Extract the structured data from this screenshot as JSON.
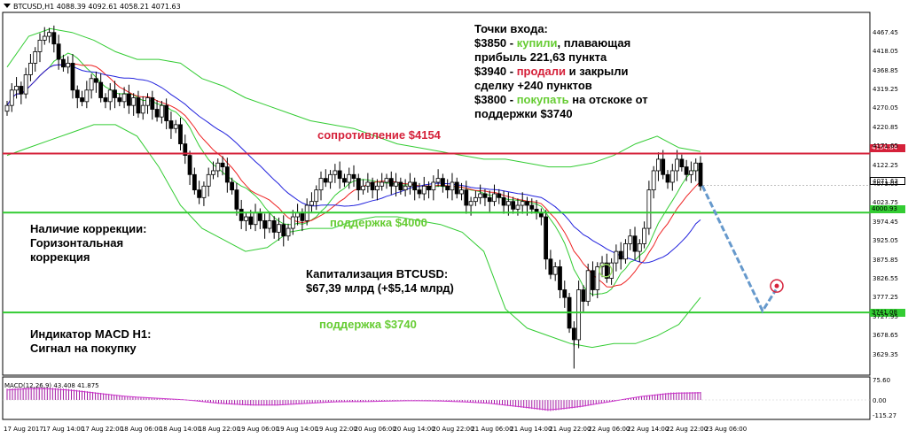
{
  "header": {
    "symbol_info": "BTCUSD,H1  4088.39 4092.61 4058.21 4071.63"
  },
  "annotations": {
    "entry_title": "Точки входа:",
    "entry1_price": "$3850 - ",
    "entry1_action": "купили",
    "entry1_rest": ", плавающая",
    "entry1_line2": "прибыль 221,63 пункта",
    "entry2_price": "$3940 - ",
    "entry2_action": "продали",
    "entry2_rest": " и закрыли",
    "entry2_line2": "сделку +240 пунктов",
    "entry3_price": "$3800 - ",
    "entry3_action": "покупать",
    "entry3_rest": " на отскоке от",
    "entry3_line2": "поддержки $3740",
    "correction_1": "Наличие коррекции:",
    "correction_2": "Горизонтальная",
    "correction_3": "коррекция",
    "cap_1": "Капитализация BTCUSD:",
    "cap_2": "$67,39 млрд (+$5,14 млрд)",
    "macd_1": "Индикатор MACD H1:",
    "macd_2": "Сигнал на покупку"
  },
  "levels": {
    "resistance_label": "сопротивление $4154",
    "support1_label": "поддержка $4000",
    "support2_label": "поддержка $3740",
    "resistance_tag": "4154.84",
    "current_tag": "4071.63",
    "support1_tag": "4000.93",
    "support2_tag": "3741.08"
  },
  "macd": {
    "title": "MACD(12,26,9) 43.408 41.875"
  },
  "colors": {
    "resistance": "#d5213a",
    "support": "#33cc33",
    "sell": "#d5213a",
    "buy": "#66cc33",
    "bb": "#33cc33",
    "ma_red": "#ee2222",
    "ma_blue": "#2222dd",
    "macd": "#990099",
    "forecast": "#6699cc"
  },
  "chart_data": {
    "type": "candlestick",
    "symbol": "BTCUSD",
    "timeframe": "H1",
    "ylim": [
      3580,
      4520
    ],
    "y_ticks": [
      4467.45,
      4418.05,
      4368.85,
      4319.25,
      4270.05,
      4220.85,
      4171.65,
      4122.25,
      4073.05,
      4023.75,
      3974.45,
      3925.05,
      3875.85,
      3826.55,
      3777.25,
      3727.95,
      3678.65,
      3629.35
    ],
    "x_ticks": [
      "17 Aug 2017",
      "17 Aug 14:00",
      "17 Aug 22:00",
      "18 Aug 06:00",
      "18 Aug 14:00",
      "18 Aug 22:00",
      "19 Aug 06:00",
      "19 Aug 14:00",
      "19 Aug 22:00",
      "20 Aug 06:00",
      "20 Aug 14:00",
      "20 Aug 22:00",
      "21 Aug 06:00",
      "21 Aug 14:00",
      "21 Aug 22:00",
      "22 Aug 06:00",
      "22 Aug 14:00",
      "22 Aug 22:00",
      "23 Aug 06:00"
    ],
    "close": [
      4280,
      4320,
      4330,
      4310,
      4360,
      4390,
      4420,
      4450,
      4460,
      4470,
      4440,
      4400,
      4380,
      4390,
      4320,
      4300,
      4290,
      4320,
      4350,
      4340,
      4300,
      4290,
      4320,
      4300,
      4290,
      4310,
      4280,
      4300,
      4260,
      4280,
      4300,
      4270,
      4250,
      4280,
      4240,
      4220,
      4230,
      4180,
      4150,
      4100,
      4060,
      4040,
      4070,
      4100,
      4110,
      4130,
      4120,
      4080,
      4060,
      4010,
      3980,
      3990,
      3970,
      4000,
      3980,
      3960,
      3980,
      3950,
      3970,
      3940,
      3960,
      3990,
      4000,
      3980,
      4020,
      4030,
      4060,
      4090,
      4080,
      4100,
      4110,
      4090,
      4080,
      4100,
      4090,
      4060,
      4070,
      4080,
      4060,
      4070,
      4080,
      4090,
      4070,
      4080,
      4060,
      4070,
      4080,
      4060,
      4050,
      4070,
      4060,
      4080,
      4090,
      4070,
      4060,
      4080,
      4050,
      4060,
      4020,
      4030,
      4040,
      4050,
      4040,
      4030,
      4050,
      4040,
      4020,
      4030,
      4010,
      4020,
      4030,
      4020,
      4010,
      4000,
      3990,
      3880,
      3840,
      3860,
      3800,
      3780,
      3700,
      3670,
      3800,
      3770,
      3850,
      3800,
      3860,
      3870,
      3830,
      3870,
      3900,
      3880,
      3920,
      3940,
      3900,
      3920,
      3960,
      4060,
      4110,
      4140,
      4100,
      4080,
      4110,
      4140,
      4120,
      4100,
      4110,
      4130,
      4070
    ],
    "bb_upper": [
      4380,
      4460,
      4480,
      4470,
      4450,
      4420,
      4400,
      4400,
      4390,
      4350,
      4330,
      4300,
      4280,
      4260,
      4240,
      4230,
      4220,
      4200,
      4180,
      4170,
      4160,
      4150,
      4140,
      4140,
      4130,
      4120,
      4120,
      4130,
      4150,
      4180,
      4200,
      4170,
      4160
    ],
    "bb_lower": [
      4150,
      4170,
      4190,
      4210,
      4230,
      4230,
      4200,
      4120,
      4020,
      3960,
      3930,
      3900,
      3910,
      3950,
      3960,
      3960,
      3980,
      3990,
      3990,
      3980,
      3970,
      3950,
      3900,
      3750,
      3700,
      3680,
      3660,
      3650,
      3660,
      3660,
      3680,
      3710,
      3780
    ],
    "macd_values": [
      60,
      70,
      60,
      40,
      20,
      10,
      0,
      -20,
      -30,
      -30,
      -20,
      -10,
      -10,
      -5,
      -5,
      -10,
      -20,
      -40,
      -60,
      -40,
      -10,
      20,
      40,
      43
    ]
  }
}
